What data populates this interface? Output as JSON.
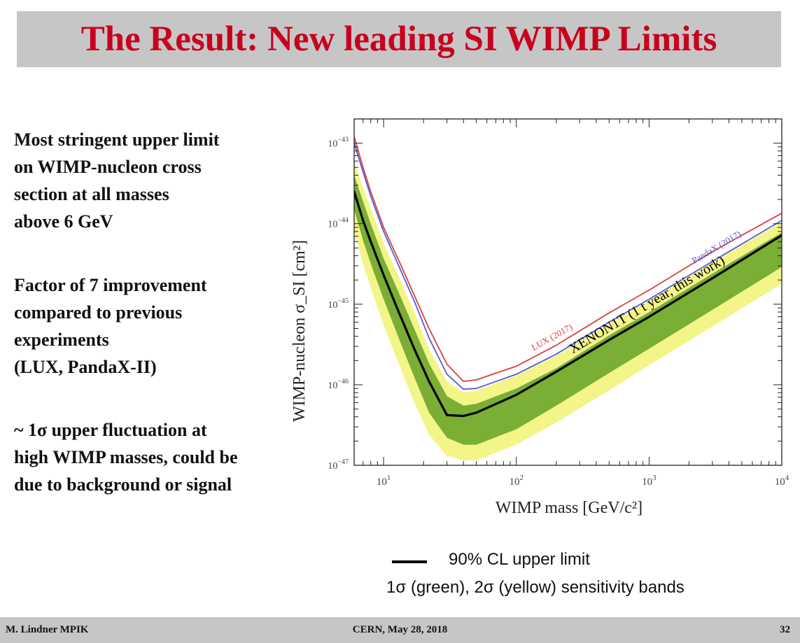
{
  "slide": {
    "title": "The Result: New leading SI WIMP Limits"
  },
  "bullets": [
    {
      "lines": [
        "Most stringent upper limit",
        "on WIMP-nucleon cross",
        "section at all masses",
        "above 6 GeV"
      ]
    },
    {
      "lines": [
        "Factor of 7 improvement",
        "compared to previous",
        "experiments",
        "(LUX, PandaX-II)"
      ]
    },
    {
      "lines": [
        "~ 1σ upper fluctuation at",
        "high WIMP masses, could be",
        "due to background or signal"
      ]
    }
  ],
  "legend": {
    "line_label": "90% CL upper limit",
    "bands_label": "1σ (green), 2σ (yellow) sensitivity bands"
  },
  "footer": {
    "left": "M. Lindner MPIK",
    "center": "CERN, May 28, 2018",
    "right": "32"
  },
  "chart_data": {
    "type": "line",
    "xlabel": "WIMP mass [GeV/c²]",
    "ylabel": "WIMP-nucleon σ_SI [cm²]",
    "xscale": "log",
    "yscale": "log",
    "xlim": [
      6,
      10000
    ],
    "ylim": [
      1e-47,
      2e-43
    ],
    "x_ticks": [
      {
        "value": 10,
        "base": "10",
        "exp": "1"
      },
      {
        "value": 100,
        "base": "10",
        "exp": "2"
      },
      {
        "value": 1000,
        "base": "10",
        "exp": "3"
      },
      {
        "value": 10000,
        "base": "10",
        "exp": "4"
      }
    ],
    "y_ticks": [
      {
        "value": 1e-43,
        "base": "10",
        "exp": "−43"
      },
      {
        "value": 1e-44,
        "base": "10",
        "exp": "−44"
      },
      {
        "value": 1e-45,
        "base": "10",
        "exp": "−45"
      },
      {
        "value": 1e-46,
        "base": "10",
        "exp": "−46"
      },
      {
        "value": 1e-47,
        "base": "10",
        "exp": "−47"
      }
    ],
    "series": [
      {
        "name": "LUX (2017)",
        "color": "#d9403a",
        "x": [
          6,
          7,
          8,
          10,
          13,
          17,
          22,
          30,
          40,
          50,
          100,
          200,
          500,
          1000,
          3000,
          10000
        ],
        "y": [
          1.2e-43,
          5e-44,
          2.5e-44,
          9e-45,
          3.5e-45,
          1.3e-45,
          5e-46,
          1.8e-46,
          1.1e-46,
          1.15e-46,
          1.7e-46,
          3.1e-46,
          7.8e-46,
          1.5e-45,
          4.5e-45,
          1.35e-44
        ]
      },
      {
        "name": "PandaX (2017)",
        "color": "#5a5ad8",
        "x": [
          6,
          7,
          8,
          10,
          13,
          17,
          22,
          30,
          40,
          50,
          100,
          200,
          500,
          1000,
          3000,
          10000
        ],
        "y": [
          1e-43,
          4.4e-44,
          2.2e-44,
          8e-45,
          3e-45,
          1.1e-45,
          3.8e-46,
          1.35e-46,
          8.8e-47,
          9e-47,
          1.35e-46,
          2.4e-46,
          6e-46,
          1.15e-45,
          3.4e-45,
          1.1e-44
        ]
      },
      {
        "name": "XENON1T (1 t year, this work)",
        "color": "#000000",
        "x": [
          6,
          7,
          8,
          10,
          13,
          17,
          22,
          30,
          40,
          50,
          100,
          200,
          500,
          1000,
          3000,
          10000
        ],
        "y": [
          2.5e-44,
          1.1e-44,
          6e-45,
          2.3e-45,
          8e-46,
          2.8e-46,
          1.1e-46,
          4.2e-47,
          4.1e-47,
          4.5e-47,
          7.5e-47,
          1.45e-46,
          3.6e-46,
          7e-46,
          2.1e-45,
          7.2e-45
        ]
      }
    ],
    "bands": [
      {
        "name": "2σ",
        "color": "#f4f589",
        "x": [
          6,
          7,
          8,
          10,
          13,
          17,
          22,
          30,
          40,
          50,
          100,
          200,
          500,
          1000,
          3000,
          10000
        ],
        "lower": [
          8e-45,
          3.2e-45,
          1.6e-45,
          5.5e-46,
          1.8e-46,
          6e-47,
          2.4e-47,
          1.3e-47,
          1.15e-47,
          1.15e-47,
          1.8e-47,
          3.4e-47,
          8.5e-47,
          1.75e-46,
          5.3e-46,
          1.8e-45
        ],
        "upper": [
          6e-44,
          2.8e-44,
          1.55e-44,
          5.7e-45,
          2.2e-45,
          8e-46,
          2.8e-46,
          1.1e-46,
          8e-47,
          8.5e-47,
          1.3e-46,
          2.3e-46,
          5.8e-46,
          1.1e-45,
          3.3e-45,
          1.05e-44
        ]
      },
      {
        "name": "1σ",
        "color": "#7aae34",
        "x": [
          6,
          7,
          8,
          10,
          13,
          17,
          22,
          30,
          40,
          50,
          100,
          200,
          500,
          1000,
          3000,
          10000
        ],
        "lower": [
          1.5e-44,
          6.2e-45,
          3.2e-45,
          1.15e-45,
          3.8e-46,
          1.25e-46,
          4.5e-47,
          2.2e-47,
          1.8e-47,
          1.8e-47,
          2.8e-47,
          5.5e-47,
          1.4e-46,
          2.8e-46,
          8.5e-46,
          2.9e-45
        ],
        "upper": [
          4e-44,
          1.9e-44,
          1e-44,
          3.7e-45,
          1.4e-45,
          5e-46,
          1.85e-46,
          7.2e-47,
          5.5e-47,
          5.8e-47,
          9e-47,
          1.6e-46,
          4.1e-46,
          8e-46,
          2.4e-45,
          7.8e-45
        ]
      }
    ]
  }
}
